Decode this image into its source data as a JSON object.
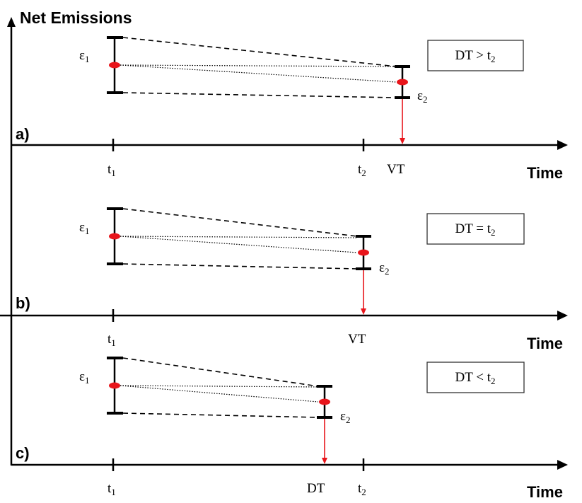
{
  "y_axis_label": "Net Emissions",
  "x_axis_label": "Time",
  "symbols": {
    "epsilon": "ε",
    "t": "t"
  },
  "colors": {
    "axis": "#000000",
    "error_bar": "#000000",
    "point": "#e8151b",
    "arrow": "#e8151b"
  },
  "panels": [
    {
      "id": "a",
      "label": "a)",
      "box_text": "DT > t",
      "box_sub": "2",
      "ticks": [
        {
          "main": "t",
          "sub": "1"
        },
        {
          "main": "t",
          "sub": "2"
        },
        {
          "main": "VT",
          "sub": ""
        }
      ],
      "eps1_sub": "1",
      "eps2_sub": "2"
    },
    {
      "id": "b",
      "label": "b)",
      "box_text": "DT = t",
      "box_sub": "2",
      "ticks": [
        {
          "main": "t",
          "sub": "1"
        },
        {
          "main": "VT",
          "sub": ""
        }
      ],
      "eps1_sub": "1",
      "eps2_sub": "2"
    },
    {
      "id": "c",
      "label": "c)",
      "box_text": "DT < t",
      "box_sub": "2",
      "ticks": [
        {
          "main": "t",
          "sub": "1"
        },
        {
          "main": "DT",
          "sub": ""
        },
        {
          "main": "t",
          "sub": "2"
        }
      ],
      "eps1_sub": "1",
      "eps2_sub": "2"
    }
  ]
}
